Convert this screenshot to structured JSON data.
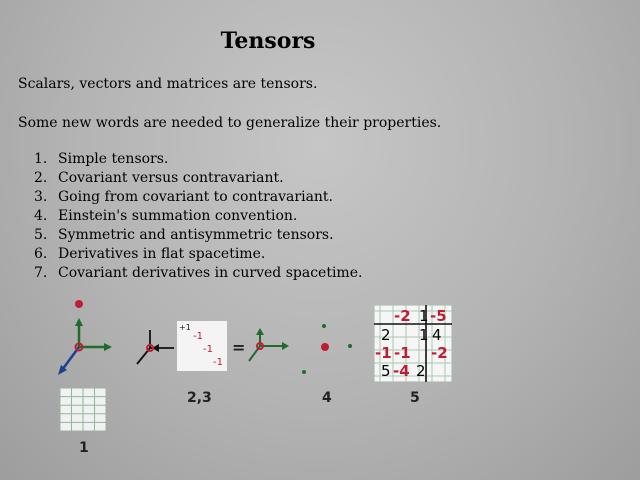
{
  "title": "Tensors",
  "intro": "Scalars, vectors and matrices are tensors.",
  "subtitle": "Some new words are needed to generalize their properties.",
  "list": [
    {
      "num": "1.",
      "text": "Simple tensors."
    },
    {
      "num": "2.",
      "text": "Covariant versus contravariant."
    },
    {
      "num": "3.",
      "text": "Going from covariant to contravariant."
    },
    {
      "num": "4.",
      "text": "Einstein's summation convention."
    },
    {
      "num": "5.",
      "text": "Symmetric and antisymmetric tensors."
    },
    {
      "num": "6.",
      "text": "Derivatives in flat spacetime."
    },
    {
      "num": "7.",
      "text": "Covariant derivatives in curved spacetime."
    }
  ],
  "figure": {
    "labels": {
      "one": "1",
      "two_three": "2,3",
      "four": "4",
      "five": "5"
    },
    "equals": "=",
    "small_matrix": {
      "corner": "+1",
      "entries": [
        "-1",
        "-1",
        "-1"
      ]
    },
    "matrix": {
      "row1": [
        "-2",
        "1",
        "-5"
      ],
      "row2": [
        "2",
        "1",
        "4"
      ],
      "row3": [
        "-1",
        "-1",
        "-2"
      ],
      "row4": [
        "5",
        "-4",
        "2"
      ]
    },
    "colors": {
      "red": "#c01d35",
      "green": "#1f6b2a",
      "blue": "#1c3f8f"
    }
  }
}
